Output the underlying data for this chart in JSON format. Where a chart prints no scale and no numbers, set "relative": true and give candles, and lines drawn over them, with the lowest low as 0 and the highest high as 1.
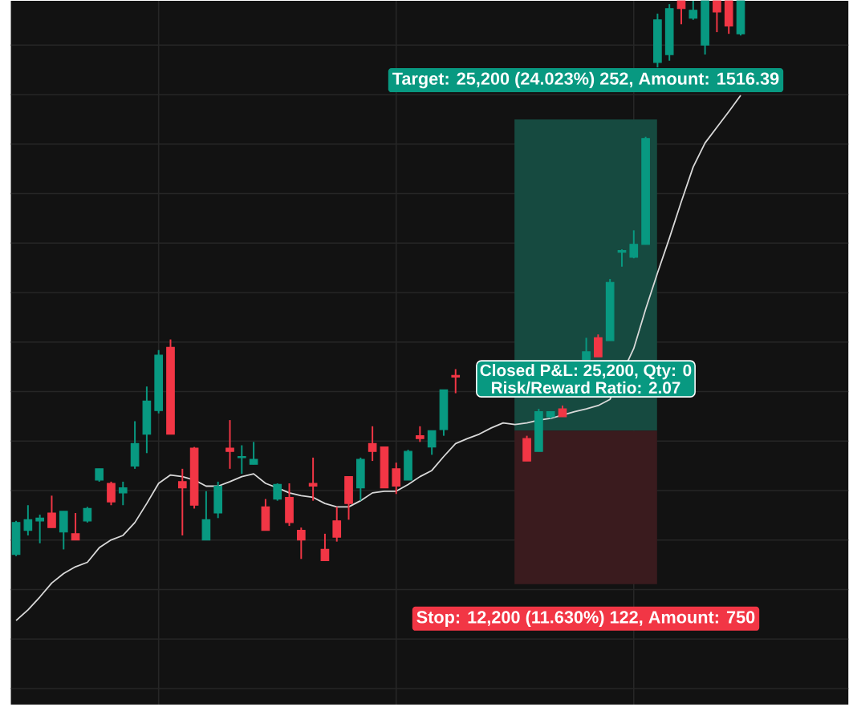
{
  "chart_data": {
    "type": "candlestick",
    "relative": true,
    "grid": true,
    "categories": [
      null,
      null,
      null,
      null,
      null,
      null,
      null,
      null,
      null,
      null,
      null,
      null,
      null,
      null,
      null,
      null,
      null,
      null,
      null,
      null,
      null,
      null,
      null,
      null,
      null,
      null,
      null,
      null,
      null,
      null,
      null,
      null,
      null,
      null,
      null,
      null,
      null,
      null,
      null,
      null,
      null,
      null,
      null,
      null,
      null,
      null,
      null,
      null,
      null,
      null,
      null,
      null,
      null,
      null,
      null,
      null,
      null,
      null,
      null,
      null,
      null,
      null
    ],
    "ohlc": [
      [
        0.011,
        0.071,
        0.008,
        0.068
      ],
      [
        0.054,
        0.099,
        0.045,
        0.073
      ],
      [
        0.071,
        0.082,
        0.031,
        0.076
      ],
      [
        0.085,
        0.116,
        0.059,
        0.059
      ],
      [
        0.051,
        0.088,
        0.02,
        0.088
      ],
      [
        0.048,
        0.085,
        0.037,
        0.037
      ],
      [
        0.071,
        0.096,
        0.068,
        0.093
      ],
      [
        0.144,
        0.164,
        0.141,
        0.164
      ],
      [
        0.138,
        0.141,
        0.099,
        0.105
      ],
      [
        0.121,
        0.141,
        0.099,
        0.13
      ],
      [
        0.169,
        0.249,
        0.164,
        0.209
      ],
      [
        0.226,
        0.311,
        0.192,
        0.285
      ],
      [
        0.268,
        0.376,
        0.263,
        0.367
      ],
      [
        0.381,
        0.395,
        0.226,
        0.226
      ],
      [
        0.141,
        0.164,
        0.045,
        0.13
      ],
      [
        0.201,
        0.203,
        0.093,
        0.099
      ],
      [
        0.037,
        0.124,
        0.037,
        0.073
      ],
      [
        0.085,
        0.141,
        0.076,
        0.133
      ],
      [
        0.201,
        0.251,
        0.164,
        0.195
      ],
      [
        0.184,
        0.206,
        0.155,
        0.186
      ],
      [
        0.172,
        0.212,
        0.172,
        0.181
      ],
      [
        0.096,
        0.11,
        0.054,
        0.054
      ],
      [
        0.11,
        0.138,
        0.107,
        0.136
      ],
      [
        0.113,
        0.138,
        0.062,
        0.068
      ],
      [
        0.054,
        0.059,
        0.003,
        0.037
      ],
      [
        0.138,
        0.184,
        0.107,
        0.133
      ],
      [
        0.02,
        0.048,
        0.0,
        0.0
      ],
      [
        0.071,
        0.096,
        0.034,
        0.042
      ],
      [
        0.15,
        0.15,
        0.073,
        0.102
      ],
      [
        0.13,
        0.184,
        0.107,
        0.181
      ],
      [
        0.209,
        0.24,
        0.178,
        0.195
      ],
      [
        0.203,
        0.203,
        0.13,
        0.13
      ],
      [
        0.164,
        0.175,
        0.119,
        0.133
      ],
      [
        0.144,
        0.198,
        0.144,
        0.195
      ],
      [
        0.223,
        0.24,
        0.212,
        0.218
      ],
      [
        0.203,
        0.232,
        0.189,
        0.232
      ],
      [
        0.234,
        0.305,
        0.223,
        0.305
      ],
      [
        0.331,
        0.342,
        0.299,
        0.328
      ],
      null,
      null,
      null,
      null,
      null,
      [
        0.218,
        0.223,
        0.178,
        0.178
      ],
      [
        0.195,
        0.271,
        0.195,
        0.266
      ],
      [
        0.257,
        0.266,
        0.254,
        0.266
      ],
      [
        0.271,
        0.277,
        0.257,
        0.257
      ],
      null,
      [
        0.359,
        0.398,
        0.359,
        0.373
      ],
      [
        0.398,
        0.404,
        0.364,
        0.364
      ],
      [
        0.393,
        0.503,
        0.393,
        0.497
      ],
      [
        0.551,
        0.556,
        0.525,
        0.554
      ],
      [
        0.542,
        0.59,
        0.54,
        0.565
      ],
      [
        0.565,
        0.757,
        0.565,
        0.754
      ],
      [
        0.89,
        0.977,
        0.881,
        0.966
      ],
      [
        0.904,
        0.994,
        0.893,
        0.986
      ],
      [
        1.0,
        1.0,
        0.958,
        0.986
      ],
      [
        0.969,
        1.0,
        0.966,
        0.983
      ],
      [
        0.921,
        1.0,
        0.904,
        1.0
      ],
      [
        1.0,
        1.0,
        0.944,
        0.98
      ],
      [
        1.0,
        1.0,
        0.941,
        0.955
      ],
      [
        0.941,
        1.0,
        0.938,
        1.0
      ]
    ],
    "colors": [
      "#089981",
      "#089981",
      "#089981",
      "#f23645",
      "#089981",
      "#f23645",
      "#089981",
      "#089981",
      "#f23645",
      "#089981",
      "#089981",
      "#089981",
      "#089981",
      "#f23645",
      "#f23645",
      "#f23645",
      "#089981",
      "#089981",
      "#f23645",
      "#089981",
      "#089981",
      "#f23645",
      "#089981",
      "#f23645",
      "#f23645",
      "#f23645",
      "#f23645",
      "#f23645",
      "#f23645",
      "#089981",
      "#f23645",
      "#f23645",
      "#f23645",
      "#089981",
      "#f23645",
      "#089981",
      "#089981",
      "#f23645",
      null,
      null,
      null,
      null,
      null,
      "#f23645",
      "#089981",
      "#089981",
      "#f23645",
      null,
      "#089981",
      "#f23645",
      "#089981",
      "#089981",
      "#089981",
      "#089981",
      "#089981",
      "#089981",
      "#f23645",
      "#089981",
      "#089981",
      "#f23645",
      "#f23645",
      "#089981"
    ],
    "series": [
      {
        "type": "line",
        "color": "#d9d9d9",
        "values": [
          -0.107,
          -0.088,
          -0.065,
          -0.04,
          -0.023,
          -0.011,
          -0.003,
          0.023,
          0.037,
          0.045,
          0.068,
          0.102,
          0.138,
          0.153,
          0.15,
          0.144,
          0.133,
          0.133,
          0.141,
          0.15,
          0.155,
          0.138,
          0.13,
          0.121,
          0.116,
          0.113,
          0.102,
          0.096,
          0.096,
          0.107,
          0.121,
          0.124,
          0.124,
          0.136,
          0.15,
          0.161,
          0.186,
          0.209,
          0.218,
          0.226,
          0.237,
          0.246,
          0.243,
          0.246,
          0.251,
          0.254,
          0.26,
          0.266,
          0.271,
          0.277,
          0.288,
          null,
          0.379,
          0.449,
          0.514,
          0.576,
          0.641,
          0.703,
          0.746,
          0.774,
          0.802,
          0.831
        ]
      }
    ],
    "bands": [
      {
        "axis": "y",
        "from": 0.232,
        "to": 0.788,
        "color": "#164a40",
        "label": "Target: 25,200 (24.023%) 252, Amount: 1516.39"
      },
      {
        "axis": "y",
        "from": -0.042,
        "to": 0.232,
        "color": "#3a1b1e",
        "label": "Stop: 12,200 (11.630%) 122, Amount: 750"
      }
    ],
    "annotations": [
      "Closed P&L: 25,200, Qty: 0",
      "Risk/Reward Ratio: 2.07"
    ]
  }
}
